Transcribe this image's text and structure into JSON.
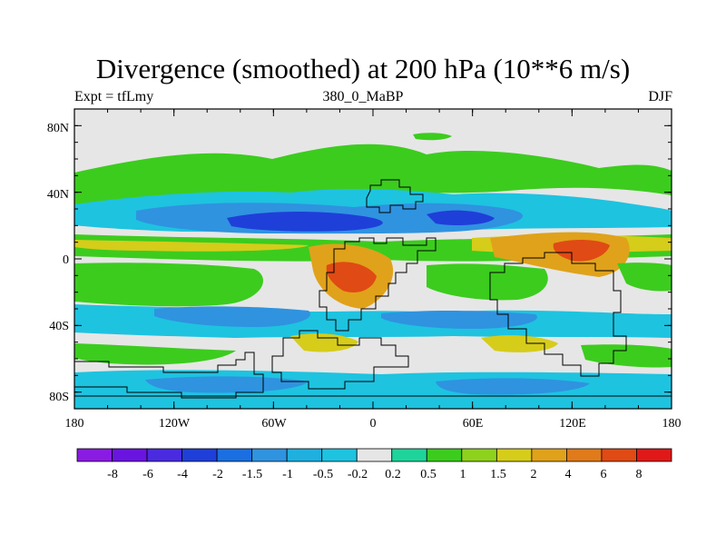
{
  "title": "Divergence (smoothed) at 200 hPa (10**6 m/s)",
  "left_label": "Expt = tfLmy",
  "center_label": "380_0_MaBP",
  "right_label": "DJF",
  "map": {
    "lat_ticks": [
      "80N",
      "40N",
      "0",
      "40S",
      "80S"
    ],
    "lon_ticks": [
      "180",
      "120W",
      "60W",
      "0",
      "60E",
      "120E",
      "180"
    ]
  },
  "colorbar": {
    "labels": [
      "-8",
      "-6",
      "-4",
      "-2",
      "-1.5",
      "-1",
      "-0.5",
      "-0.2",
      "0.2",
      "0.5",
      "1",
      "1.5",
      "2",
      "4",
      "6",
      "8"
    ],
    "colors": [
      "#8a1be3",
      "#6a14e0",
      "#4a2be0",
      "#1f3fd9",
      "#1b6fe0",
      "#2f93e0",
      "#1fb0e0",
      "#1ec3e0",
      "#e6e6e6",
      "#1fd49a",
      "#3ccc1e",
      "#8ed21e",
      "#d6cc1a",
      "#e0a21a",
      "#e07a1a",
      "#e04a14",
      "#e01818"
    ]
  }
}
